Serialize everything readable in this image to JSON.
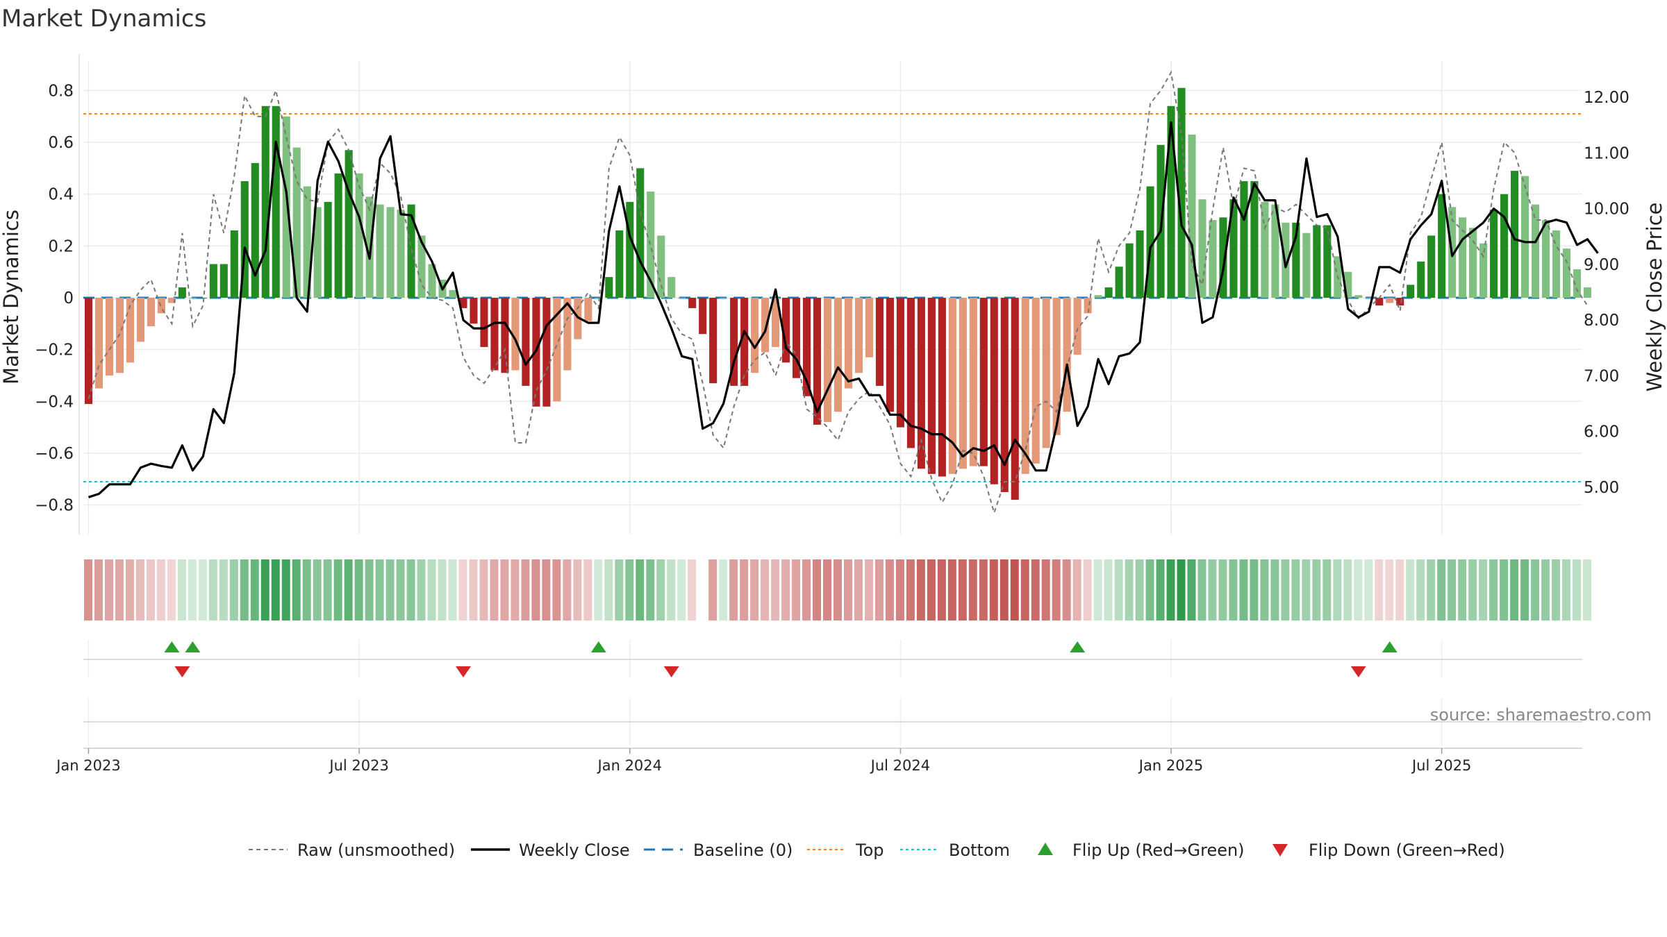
{
  "colors": {
    "up_bar": "#228b22",
    "down_bar": "#b22222",
    "up_faded": "#7fbf7f",
    "down_faded": "#e39878",
    "price_line": "#000000",
    "raw_line": "#777777",
    "baseline": "#1f77b4",
    "top": "#ff7f0e",
    "bottom": "#17becf",
    "flip_up": "#2ca02c",
    "flip_down": "#d62728"
  },
  "chart_data": {
    "type": "bar+line",
    "title": "Market Dynamics",
    "ylabel_left": "Market Dynamics",
    "ylabel_right": "Weekly Close Price",
    "ylim_left": [
      -0.86,
      0.86
    ],
    "ylim_right": [
      4.4,
      12.4
    ],
    "left_ticks": [
      "0.8",
      "0.6",
      "0.4",
      "0.2",
      "0",
      "−0.2",
      "−0.4",
      "−0.6",
      "−0.8"
    ],
    "left_tick_values": [
      0.8,
      0.6,
      0.4,
      0.2,
      0,
      -0.2,
      -0.4,
      -0.6,
      -0.8
    ],
    "right_ticks": [
      "12.00",
      "11.00",
      "10.00",
      "9.00",
      "8.00",
      "7.00",
      "6.00",
      "5.00"
    ],
    "right_tick_values": [
      12,
      11,
      10,
      9,
      8,
      7,
      6,
      5
    ],
    "x_tick_labels": [
      "Jan 2023",
      "Jul 2023",
      "Jan 2024",
      "Jul 2024",
      "Jan 2025",
      "Jul 2025"
    ],
    "x_tick_weeks": [
      0,
      26,
      52,
      78,
      104,
      130
    ],
    "top_line": 0.71,
    "bottom_line": -0.71,
    "baseline": 0,
    "grid": true,
    "weeks": 144,
    "market_dynamics": [
      -0.41,
      -0.35,
      -0.3,
      -0.29,
      -0.25,
      -0.17,
      -0.11,
      -0.06,
      -0.02,
      0.04,
      0,
      0,
      0.13,
      0.13,
      0.26,
      0.45,
      0.52,
      0.74,
      0.74,
      0.7,
      0.58,
      0.43,
      0.35,
      0.37,
      0.48,
      0.57,
      0.48,
      0.39,
      0.36,
      0.35,
      0.34,
      0.36,
      0.24,
      0.13,
      0.07,
      0.03,
      -0.04,
      -0.1,
      -0.19,
      -0.28,
      -0.29,
      -0.28,
      -0.34,
      -0.42,
      -0.42,
      -0.4,
      -0.28,
      -0.16,
      -0.09,
      0,
      0.08,
      0.26,
      0.37,
      0.5,
      0.41,
      0.24,
      0.08,
      0,
      -0.04,
      -0.14,
      -0.33,
      0,
      -0.34,
      -0.34,
      -0.29,
      -0.21,
      -0.19,
      -0.25,
      -0.31,
      -0.38,
      -0.49,
      -0.48,
      -0.44,
      -0.35,
      -0.29,
      -0.23,
      -0.34,
      -0.44,
      -0.5,
      -0.58,
      -0.66,
      -0.68,
      -0.69,
      -0.68,
      -0.66,
      -0.65,
      -0.65,
      -0.72,
      -0.75,
      -0.78,
      -0.68,
      -0.64,
      -0.58,
      -0.53,
      -0.44,
      -0.22,
      -0.06,
      0.01,
      0.04,
      0.12,
      0.21,
      0.26,
      0.43,
      0.59,
      0.74,
      0.81,
      0.63,
      0.38,
      0.3,
      0.31,
      0.38,
      0.45,
      0.45,
      0.37,
      0.36,
      0.29,
      0.29,
      0.25,
      0.28,
      0.28,
      0.16,
      0.1,
      0.01,
      0,
      -0.03,
      -0.02,
      -0.03,
      0.05,
      0.14,
      0.24,
      0.4,
      0.35,
      0.31,
      0.27,
      0.21,
      0.34,
      0.4,
      0.49,
      0.47,
      0.36,
      0.3,
      0.26,
      0.19,
      0.11,
      0.04
    ],
    "raw_unsmoothed": [
      -0.39,
      -0.26,
      -0.2,
      -0.14,
      -0.03,
      0.03,
      0.07,
      -0.04,
      -0.1,
      0.25,
      -0.11,
      -0.03,
      0.4,
      0.25,
      0.47,
      0.78,
      0.7,
      0.7,
      0.8,
      0.62,
      0.45,
      0.38,
      0.37,
      0.6,
      0.65,
      0.57,
      0.43,
      0.34,
      0.52,
      0.48,
      0.39,
      0.19,
      0.05,
      0,
      -0.01,
      -0.04,
      -0.23,
      -0.3,
      -0.33,
      -0.27,
      -0.2,
      -0.56,
      -0.56,
      -0.36,
      -0.28,
      -0.18,
      -0.08,
      -0.04,
      0.02,
      -0.04,
      0.5,
      0.62,
      0.55,
      0.33,
      0.2,
      0.05,
      -0.08,
      -0.14,
      -0.16,
      -0.33,
      -0.53,
      -0.58,
      -0.42,
      -0.3,
      -0.24,
      -0.21,
      -0.3,
      -0.17,
      -0.22,
      -0.43,
      -0.46,
      -0.5,
      -0.55,
      -0.44,
      -0.39,
      -0.36,
      -0.42,
      -0.49,
      -0.64,
      -0.69,
      -0.55,
      -0.7,
      -0.79,
      -0.72,
      -0.59,
      -0.6,
      -0.69,
      -0.83,
      -0.71,
      -0.71,
      -0.59,
      -0.42,
      -0.4,
      -0.44,
      -0.27,
      -0.12,
      -0.07,
      0.23,
      0.1,
      0.2,
      0.25,
      0.42,
      0.75,
      0.8,
      0.87,
      0.63,
      0.13,
      0.05,
      0.34,
      0.58,
      0.35,
      0.5,
      0.49,
      0.27,
      0.35,
      0.33,
      0.36,
      0.32,
      0.28,
      0.27,
      0.08,
      -0.01,
      -0.08,
      -0.04,
      0,
      0.05,
      -0.05,
      0.25,
      0.31,
      0.46,
      0.6,
      0.3,
      0.26,
      0.22,
      0.16,
      0.42,
      0.6,
      0.56,
      0.43,
      0.3,
      0.3,
      0.2,
      0.14,
      0.03,
      -0.03
    ],
    "weekly_close": [
      4.82,
      4.88,
      5.05,
      5.05,
      5.05,
      5.35,
      5.42,
      5.38,
      5.35,
      5.75,
      5.3,
      5.55,
      6.4,
      6.15,
      7.05,
      9.3,
      8.8,
      9.25,
      11.2,
      10.3,
      8.4,
      8.15,
      10.5,
      11.2,
      10.85,
      10.3,
      9.85,
      9.1,
      10.9,
      11.3,
      9.9,
      9.88,
      9.4,
      9.05,
      8.55,
      8.85,
      8.0,
      7.85,
      7.85,
      7.95,
      7.95,
      7.65,
      7.2,
      7.45,
      7.9,
      8.1,
      8.3,
      8.05,
      7.95,
      7.95,
      9.6,
      10.4,
      9.5,
      9.05,
      8.7,
      8.3,
      7.85,
      7.35,
      7.3,
      6.05,
      6.15,
      6.5,
      7.25,
      7.8,
      7.5,
      7.8,
      8.55,
      7.5,
      7.3,
      6.9,
      6.35,
      6.75,
      7.15,
      6.9,
      6.95,
      6.65,
      6.65,
      6.3,
      6.3,
      6.1,
      6.05,
      5.95,
      5.95,
      5.8,
      5.55,
      5.7,
      5.65,
      5.75,
      5.4,
      5.85,
      5.6,
      5.3,
      5.3,
      6.1,
      7.2,
      6.1,
      6.45,
      7.3,
      6.85,
      7.35,
      7.4,
      7.6,
      9.3,
      9.6,
      11.55,
      9.7,
      9.35,
      7.95,
      8.05,
      8.9,
      10.2,
      9.8,
      10.45,
      10.15,
      10.15,
      8.95,
      9.5,
      10.9,
      9.85,
      9.9,
      9.5,
      8.2,
      8.05,
      8.15,
      8.95,
      8.95,
      8.85,
      9.45,
      9.7,
      9.9,
      10.5,
      9.15,
      9.45,
      9.6,
      9.75,
      10.0,
      9.85,
      9.45,
      9.4,
      9.4,
      9.75,
      9.8,
      9.75,
      9.35,
      9.45,
      9.2
    ]
  },
  "strength_strip": {
    "gap_weeks": [
      59
    ]
  },
  "flip_up_weeks": [
    8,
    10,
    49,
    95,
    125
  ],
  "flip_down_weeks": [
    9,
    36,
    56,
    122
  ],
  "legend": {
    "raw": "Raw (unsmoothed)",
    "weekly_close": "Weekly Close",
    "baseline": "Baseline (0)",
    "top": "Top",
    "bottom": "Bottom",
    "flip_up": "Flip Up (Red→Green)",
    "flip_down": "Flip Down (Green→Red)"
  },
  "source": "source: sharemaestro.com"
}
